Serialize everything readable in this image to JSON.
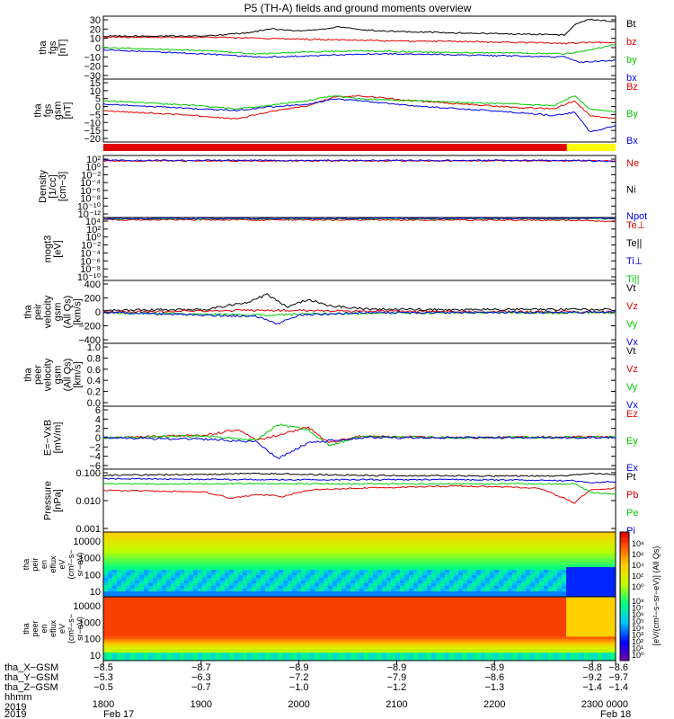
{
  "title": "P5 (TH-A) fields and ground moments overview",
  "date_left": "Feb 17",
  "date_right": "Feb 18",
  "year": "2019",
  "colors": {
    "black": "#000000",
    "red": "#e00000",
    "green": "#00cc00",
    "blue": "#0000e0"
  },
  "chart_data": [
    {
      "id": "fgs",
      "type": "line",
      "ylabel": [
        "tha",
        "fgs",
        "[nT]"
      ],
      "yticks": [
        "30",
        "20",
        "10",
        "0",
        "−10",
        "−20",
        "−30"
      ],
      "ylim": [
        -30,
        30
      ],
      "legend": [
        {
          "name": "Bt",
          "color": "#000000"
        },
        {
          "name": "bz",
          "color": "#e00000"
        },
        {
          "name": "by",
          "color": "#00cc00"
        },
        {
          "name": "bx",
          "color": "#0000e0"
        }
      ],
      "series": [
        {
          "name": "Bt",
          "color": "#000000",
          "x": [
            0,
            0.2,
            0.28,
            0.33,
            0.38,
            0.42,
            0.46,
            0.5,
            0.6,
            0.7,
            0.8,
            0.9,
            0.92,
            0.95,
            1
          ],
          "y": [
            11,
            11,
            14,
            18,
            16,
            17,
            20,
            17,
            15,
            14,
            13,
            12,
            22,
            27,
            25
          ]
        },
        {
          "name": "bz",
          "color": "#e00000",
          "x": [
            0,
            0.2,
            0.3,
            0.4,
            0.5,
            0.6,
            0.7,
            0.8,
            0.9,
            0.95,
            1
          ],
          "y": [
            10,
            10,
            9,
            8,
            7,
            6,
            6,
            5,
            4,
            5,
            5
          ]
        },
        {
          "name": "by",
          "color": "#00cc00",
          "x": [
            0,
            0.2,
            0.3,
            0.4,
            0.5,
            0.6,
            0.7,
            0.8,
            0.9,
            0.93,
            1
          ],
          "y": [
            0,
            -3,
            -6,
            -4,
            -3,
            -4,
            -5,
            -5,
            -6,
            -4,
            3
          ]
        },
        {
          "name": "bx",
          "color": "#0000e0",
          "x": [
            0,
            0.2,
            0.3,
            0.4,
            0.5,
            0.6,
            0.7,
            0.8,
            0.9,
            0.93,
            1
          ],
          "y": [
            -2,
            -6,
            -9,
            -8,
            -6,
            -6,
            -7,
            -8,
            -9,
            -14,
            -12
          ]
        }
      ]
    },
    {
      "id": "fgs_gsm",
      "type": "line",
      "ylabel": [
        "tha",
        "fgs",
        "gsm",
        "[nT]"
      ],
      "yticks": [
        "15",
        "10",
        "5",
        "0",
        "−5",
        "−10",
        "−15",
        "−20"
      ],
      "ylim": [
        -22,
        16
      ],
      "legend": [
        {
          "name": "Bz",
          "color": "#e00000"
        },
        {
          "name": "By",
          "color": "#00cc00"
        },
        {
          "name": "Bx",
          "color": "#0000e0"
        }
      ],
      "series": [
        {
          "name": "Bz",
          "color": "#e00000",
          "x": [
            0,
            0.18,
            0.26,
            0.32,
            0.4,
            0.45,
            0.5,
            0.6,
            0.7,
            0.8,
            0.88,
            0.92,
            0.95,
            1
          ],
          "y": [
            -3,
            -6,
            -8,
            -4,
            0,
            5,
            6,
            3,
            1,
            -1,
            -2,
            3,
            -6,
            -8
          ]
        },
        {
          "name": "By",
          "color": "#00cc00",
          "x": [
            0,
            0.18,
            0.26,
            0.32,
            0.4,
            0.45,
            0.5,
            0.6,
            0.7,
            0.8,
            0.88,
            0.92,
            0.95,
            1
          ],
          "y": [
            3,
            0,
            -2,
            0,
            3,
            6,
            4,
            3,
            2,
            1,
            0,
            6,
            -2,
            -4
          ]
        },
        {
          "name": "Bx",
          "color": "#0000e0",
          "x": [
            0,
            0.18,
            0.26,
            0.32,
            0.4,
            0.45,
            0.5,
            0.6,
            0.7,
            0.8,
            0.88,
            0.92,
            0.95,
            1
          ],
          "y": [
            1,
            -2,
            -3,
            -1,
            1,
            4,
            3,
            0,
            -2,
            -4,
            -6,
            -4,
            -16,
            -12
          ]
        }
      ]
    },
    {
      "id": "density",
      "type": "line",
      "ylabel": [
        "Density",
        "[1/cc]",
        "[cm−3]"
      ],
      "yticks": [
        "10²",
        "10⁰",
        "10⁻²",
        "10⁻⁴",
        "10⁻⁶",
        "10⁻⁸",
        "10⁻¹⁰",
        "10⁻¹²"
      ],
      "ylim": [
        -12,
        2
      ],
      "legend": [
        {
          "name": "Ne",
          "color": "#e00000"
        },
        {
          "name": "Ni",
          "color": "#000000"
        },
        {
          "name": "Npot",
          "color": "#0000e0"
        }
      ],
      "series": [
        {
          "name": "Ne",
          "color": "#e00000",
          "x": [
            0,
            1
          ],
          "y": [
            0.8,
            0.8
          ]
        },
        {
          "name": "Npot",
          "color": "#0000e0",
          "x": [
            0,
            0.92,
            1
          ],
          "y": [
            0.9,
            0.9,
            0.7
          ]
        }
      ]
    },
    {
      "id": "temperature",
      "type": "line",
      "ylabel": [
        "mogt3",
        "[eV]"
      ],
      "yticks": [
        "10⁴",
        "10²",
        "10⁰",
        "10⁻²",
        "10⁻⁴",
        "10⁻⁶",
        "10⁻⁸",
        "10⁻¹⁰"
      ],
      "ylim": [
        -10,
        4
      ],
      "legend": [
        {
          "name": "Te⊥",
          "color": "#e00000"
        },
        {
          "name": "Te||",
          "color": "#000000"
        },
        {
          "name": "Ti⊥",
          "color": "#0000e0"
        },
        {
          "name": "Ti||",
          "color": "#00cc00"
        }
      ],
      "series": [
        {
          "name": "Te⊥",
          "color": "#e00000",
          "x": [
            0,
            0.9,
            1
          ],
          "y": [
            3.5,
            3.4,
            3.1
          ]
        },
        {
          "name": "Ti||",
          "color": "#00cc00",
          "x": [
            0,
            1
          ],
          "y": [
            3.7,
            3.7
          ]
        },
        {
          "name": "Ti⊥",
          "color": "#0000e0",
          "x": [
            0,
            1
          ],
          "y": [
            3.8,
            3.8
          ]
        }
      ]
    },
    {
      "id": "peir_velocity",
      "type": "line",
      "ylabel": [
        "tha",
        "peir",
        "velocity",
        "gsm",
        "(All Qs)",
        "[km/s]"
      ],
      "yticks": [
        "400",
        "200",
        "0",
        "−200",
        "−400"
      ],
      "ylim": [
        -400,
        400
      ],
      "legend": [
        {
          "name": "Vt",
          "color": "#000000"
        },
        {
          "name": "Vz",
          "color": "#e00000"
        },
        {
          "name": "Vy",
          "color": "#00cc00"
        },
        {
          "name": "Vx",
          "color": "#0000e0"
        }
      ],
      "series": [
        {
          "name": "Vt",
          "color": "#000000",
          "x": [
            0,
            0.2,
            0.28,
            0.32,
            0.36,
            0.4,
            0.44,
            0.5,
            0.6,
            0.7,
            0.8,
            0.9,
            1
          ],
          "y": [
            20,
            30,
            120,
            220,
            60,
            160,
            80,
            40,
            30,
            30,
            30,
            30,
            30
          ]
        },
        {
          "name": "Vz",
          "color": "#e00000",
          "x": [
            0,
            0.3,
            0.5,
            0.7,
            1
          ],
          "y": [
            0,
            20,
            10,
            0,
            0
          ]
        },
        {
          "name": "Vy",
          "color": "#00cc00",
          "x": [
            0,
            0.3,
            0.5,
            0.7,
            1
          ],
          "y": [
            -10,
            -40,
            -20,
            -10,
            -10
          ]
        },
        {
          "name": "Vx",
          "color": "#0000e0",
          "x": [
            0,
            0.3,
            0.34,
            0.38,
            0.5,
            1
          ],
          "y": [
            -5,
            -60,
            -150,
            -40,
            -10,
            -5
          ]
        }
      ]
    },
    {
      "id": "peer_velocity",
      "type": "line",
      "ylabel": [
        "tha",
        "peer",
        "velocity",
        "gsm",
        "(All Qs)",
        "[km/s]"
      ],
      "yticks": [
        "1.0",
        "0.8",
        "0.6",
        "0.4",
        "0.2",
        "0.0"
      ],
      "ylim": [
        0,
        1
      ],
      "legend": [
        {
          "name": "Vt",
          "color": "#000000"
        },
        {
          "name": "Vz",
          "color": "#e00000"
        },
        {
          "name": "Vy",
          "color": "#00cc00"
        },
        {
          "name": "Vx",
          "color": "#0000e0"
        }
      ],
      "series": []
    },
    {
      "id": "efield",
      "type": "line",
      "ylabel": [
        "E=−VxB",
        "[mV/m]"
      ],
      "yticks": [
        "6",
        "4",
        "2",
        "0",
        "−2",
        "−4",
        "−6"
      ],
      "ylim": [
        -6,
        6
      ],
      "legend": [
        {
          "name": "Ez",
          "color": "#e00000"
        },
        {
          "name": "Ey",
          "color": "#00cc00"
        },
        {
          "name": "Ex",
          "color": "#0000e0"
        }
      ],
      "series": [
        {
          "name": "Ez",
          "color": "#e00000",
          "x": [
            0,
            0.2,
            0.26,
            0.3,
            0.4,
            0.44,
            0.5,
            0.7,
            1
          ],
          "y": [
            0,
            0.5,
            1.5,
            -0.5,
            2,
            -1,
            0.3,
            0,
            0.2
          ]
        },
        {
          "name": "Ey",
          "color": "#00cc00",
          "x": [
            0,
            0.2,
            0.3,
            0.34,
            0.4,
            0.44,
            0.5,
            0.7,
            1
          ],
          "y": [
            0,
            0.3,
            -0.5,
            2.5,
            1.5,
            -1.5,
            0.2,
            0,
            0.1
          ]
        },
        {
          "name": "Ex",
          "color": "#0000e0",
          "x": [
            0,
            0.2,
            0.3,
            0.34,
            0.4,
            0.5,
            1
          ],
          "y": [
            0,
            -0.3,
            -0.8,
            -4,
            -1,
            0,
            0
          ]
        }
      ]
    },
    {
      "id": "pressure",
      "type": "line",
      "ylabel": [
        "Pressure",
        "[nPa]"
      ],
      "yticks": [
        "0.100",
        "0.010",
        "0.001"
      ],
      "ylim": [
        -3.3,
        -0.3
      ],
      "legend": [
        {
          "name": "Pt",
          "color": "#000000"
        },
        {
          "name": "Pb",
          "color": "#e00000"
        },
        {
          "name": "Pe",
          "color": "#00cc00"
        },
        {
          "name": "Pi",
          "color": "#0000e0"
        }
      ],
      "series": [
        {
          "name": "Pt",
          "color": "#000000",
          "x": [
            0,
            0.2,
            0.3,
            0.4,
            0.5,
            0.7,
            0.9,
            0.95,
            1
          ],
          "y": [
            -0.6,
            -0.55,
            -0.5,
            -0.55,
            -0.6,
            -0.62,
            -0.62,
            -0.5,
            -0.55
          ]
        },
        {
          "name": "Pb",
          "color": "#e00000",
          "x": [
            0,
            0.2,
            0.25,
            0.3,
            0.35,
            0.4,
            0.5,
            0.7,
            0.85,
            0.92,
            0.95,
            1
          ],
          "y": [
            -1.3,
            -1.4,
            -1.7,
            -1.5,
            -1.6,
            -1.3,
            -1.2,
            -1.1,
            -1.2,
            -1.9,
            -1.3,
            -1.2
          ]
        },
        {
          "name": "Pe",
          "color": "#00cc00",
          "x": [
            0,
            0.3,
            0.5,
            0.7,
            0.92,
            0.95,
            1
          ],
          "y": [
            -1.0,
            -1.0,
            -1.0,
            -1.0,
            -1.0,
            -1.4,
            -1.5
          ]
        },
        {
          "name": "Pi",
          "color": "#0000e0",
          "x": [
            0,
            0.3,
            0.5,
            0.7,
            0.92,
            0.95,
            1
          ],
          "y": [
            -0.75,
            -0.8,
            -0.8,
            -0.8,
            -0.85,
            -0.95,
            -0.9
          ]
        }
      ]
    }
  ],
  "spectrograms": [
    {
      "id": "peir_en",
      "ylabel": [
        "tha",
        "peir",
        "en",
        "eflux",
        "eV",
        "(cm²−s−",
        "sr−eV)"
      ],
      "yticks": [
        "10000",
        "1000",
        "100",
        "10"
      ]
    },
    {
      "id": "peer_en",
      "ylabel": [
        "tha",
        "peer",
        "en",
        "eflux",
        "eV",
        "(cm²−s−",
        "sr−eV)"
      ],
      "yticks": [
        "10000",
        "1000",
        "100",
        "10"
      ]
    }
  ],
  "colorbar": {
    "label": "[eV/(cm²−s−sr−eV)] (All Qs)",
    "upper_ticks": [
      "10⁸",
      "10⁶",
      "10⁴",
      "10²",
      "10⁰"
    ],
    "lower_ticks": [
      "10⁸",
      "10⁷",
      "10⁶",
      "10⁵",
      "10⁴",
      "10³",
      "10²",
      "10¹",
      "10⁰"
    ]
  },
  "x_axis": {
    "row_labels": [
      "tha_X−GSM",
      "tha_Y−GSM",
      "tha_Z−GSM",
      "hhmm",
      "2019"
    ],
    "columns": [
      {
        "x": 0,
        "X": "−8.5",
        "Y": "−5.3",
        "Z": "−0.5",
        "hhmm": "1800"
      },
      {
        "x": 0.1909,
        "X": "−8.7",
        "Y": "−6.3",
        "Z": "−0.7",
        "hhmm": "1900"
      },
      {
        "x": 0.3818,
        "X": "−8.9",
        "Y": "−7.2",
        "Z": "−1.0",
        "hhmm": "2000"
      },
      {
        "x": 0.5727,
        "X": "−8.9",
        "Y": "−7.9",
        "Z": "−1.2",
        "hhmm": "2100"
      },
      {
        "x": 0.7636,
        "X": "−8.9",
        "Y": "−8.6",
        "Z": "−1.3",
        "hhmm": "2200"
      },
      {
        "x": 0.9545,
        "X": "−8.8",
        "Y": "−9.2",
        "Z": "−1.4",
        "hhmm": "2300"
      },
      {
        "x": 1.0,
        "X": "−8.6",
        "Y": "−9.7",
        "Z": "−1.4",
        "hhmm": "0000"
      }
    ]
  }
}
